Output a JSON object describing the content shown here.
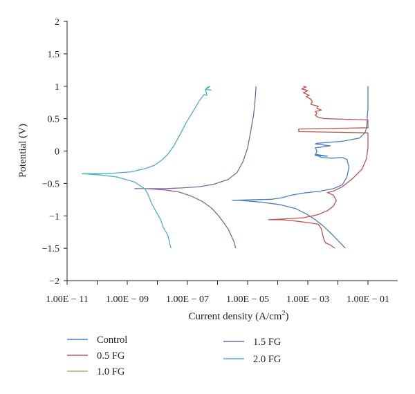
{
  "chart_data": {
    "type": "line",
    "title": "",
    "xlabel": "Current density (A/cm",
    "xlabel_sup": "2",
    "xlabel_end": ")",
    "ylabel": "Potential (V)",
    "x_scale": "log",
    "xlim": [
      1e-11,
      1
    ],
    "ylim": [
      -2,
      2
    ],
    "x_ticks": [
      1e-11,
      1e-09,
      1e-07,
      1e-05,
      0.001,
      0.1
    ],
    "x_tick_labels": [
      "1.00E − 11",
      "1.00E − 09",
      "1.00E − 07",
      "1.00E − 05",
      "1.00E − 03",
      "1.00E − 01"
    ],
    "y_ticks": [
      -2,
      -1.5,
      -1,
      -0.5,
      0,
      0.5,
      1,
      1.5,
      2
    ],
    "y_tick_labels": [
      "−2",
      "−1.5",
      "−1",
      "−0.5",
      "0",
      "0.5",
      "1",
      "1.5",
      "2"
    ],
    "grid": false,
    "legend_position": "bottom",
    "series": [
      {
        "name": "Control",
        "color": "#4a7ebb",
        "points": [
          [
            0.01778,
            -1.5
          ],
          [
            0.01,
            -1.38
          ],
          [
            0.00562,
            -1.26
          ],
          [
            0.00316,
            -1.15
          ],
          [
            0.00178,
            -1.06
          ],
          [
            0.000891,
            -0.97
          ],
          [
            0.000398,
            -0.89
          ],
          [
            0.000126,
            -0.83
          ],
          [
            3.16e-05,
            -0.79
          ],
          [
            5.62e-06,
            -0.76
          ],
          [
            3.16e-06,
            -0.76
          ],
          [
            6.31e-05,
            -0.745
          ],
          [
            0.000141,
            -0.72
          ],
          [
            0.000282,
            -0.68
          ],
          [
            0.000708,
            -0.65
          ],
          [
            0.00251,
            -0.62
          ],
          [
            0.00708,
            -0.58
          ],
          [
            0.0141,
            -0.52
          ],
          [
            0.02,
            -0.4
          ],
          [
            0.0234,
            -0.25
          ],
          [
            0.02,
            -0.13
          ],
          [
            0.0141,
            -0.1
          ],
          [
            0.00631,
            -0.11
          ],
          [
            0.00282,
            -0.1
          ],
          [
            0.002,
            -0.06
          ],
          [
            0.00224,
            -0.08
          ],
          [
            0.00178,
            -0.05
          ],
          [
            0.00447,
            -0.08
          ],
          [
            0.00178,
            -0.07
          ],
          [
            0.002,
            0.0
          ],
          [
            0.00178,
            0.05
          ],
          [
            0.00562,
            0.08
          ],
          [
            0.00178,
            0.11
          ],
          [
            0.002,
            0.12
          ],
          [
            0.0141,
            0.15
          ],
          [
            0.0525,
            0.2
          ],
          [
            0.0794,
            0.28
          ],
          [
            0.0891,
            0.35
          ],
          [
            0.0933,
            0.45
          ],
          [
            0.0955,
            0.55
          ],
          [
            0.1,
            0.65
          ],
          [
            0.1,
            0.8
          ],
          [
            0.1,
            1.0
          ]
        ]
      },
      {
        "name": "0.5 FG",
        "color": "#c0504d",
        "points": [
          [
            0.00794,
            -1.5
          ],
          [
            0.00562,
            -1.45
          ],
          [
            0.00398,
            -1.42
          ],
          [
            0.00355,
            -1.38
          ],
          [
            0.00316,
            -1.3
          ],
          [
            0.00282,
            -1.2
          ],
          [
            0.00224,
            -1.13
          ],
          [
            0.00126,
            -1.11
          ],
          [
            0.000398,
            -1.08
          ],
          [
            0.000141,
            -1.06
          ],
          [
            5.01e-05,
            -1.06
          ],
          [
            0.000141,
            -1.05
          ],
          [
            0.000708,
            -1.03
          ],
          [
            0.00224,
            -0.98
          ],
          [
            0.00447,
            -0.92
          ],
          [
            0.00708,
            -0.85
          ],
          [
            0.00891,
            -0.76
          ],
          [
            0.00708,
            -0.68
          ],
          [
            0.00447,
            -0.64
          ],
          [
            0.00708,
            -0.62
          ],
          [
            0.0141,
            -0.55
          ],
          [
            0.0316,
            -0.42
          ],
          [
            0.0631,
            -0.28
          ],
          [
            0.0891,
            -0.12
          ],
          [
            0.1,
            0.05
          ],
          [
            0.1,
            0.28
          ],
          [
            0.0005,
            0.3
          ],
          [
            0.0005,
            0.34
          ],
          [
            0.1,
            0.36
          ],
          [
            0.1,
            0.48
          ],
          [
            0.00355,
            0.5
          ],
          [
            0.00224,
            0.52
          ],
          [
            0.00178,
            0.55
          ],
          [
            0.002,
            0.58
          ],
          [
            0.00178,
            0.61
          ],
          [
            0.00282,
            0.63
          ],
          [
            0.002,
            0.66
          ],
          [
            0.00224,
            0.69
          ],
          [
            0.00126,
            0.72
          ],
          [
            0.00141,
            0.76
          ],
          [
            0.00126,
            0.8
          ],
          [
            0.000891,
            0.84
          ],
          [
            0.00112,
            0.86
          ],
          [
            0.000708,
            0.9
          ],
          [
            0.001,
            0.93
          ],
          [
            0.000631,
            0.96
          ],
          [
            0.000891,
            0.99
          ],
          [
            0.000708,
            1.0
          ]
        ]
      },
      {
        "name": "1.0 FG",
        "color": "#9bbb59",
        "points": []
      },
      {
        "name": "1.5 FG",
        "color": "#8064a2",
        "points": [
          [
            3.98e-06,
            -1.5
          ],
          [
            3.55e-06,
            -1.4
          ],
          [
            2.82e-06,
            -1.3
          ],
          [
            2.24e-06,
            -1.2
          ],
          [
            1.58e-06,
            -1.1
          ],
          [
            1e-06,
            -0.98
          ],
          [
            6.31e-07,
            -0.88
          ],
          [
            3.16e-07,
            -0.78
          ],
          [
            1.26e-07,
            -0.69
          ],
          [
            5.01e-08,
            -0.63
          ],
          [
            1.78e-08,
            -0.6
          ],
          [
            4.47e-09,
            -0.58
          ],
          [
            1.78e-09,
            -0.58
          ],
          [
            1.78e-08,
            -0.58
          ],
          [
            6.31e-08,
            -0.57
          ],
          [
            2.51e-07,
            -0.55
          ],
          [
            7.94e-07,
            -0.51
          ],
          [
            2.24e-06,
            -0.44
          ],
          [
            4.47e-06,
            -0.33
          ],
          [
            7.08e-06,
            -0.16
          ],
          [
            1e-05,
            0.05
          ],
          [
            1.26e-05,
            0.3
          ],
          [
            1.58e-05,
            0.55
          ],
          [
            1.78e-05,
            0.8
          ],
          [
            1.91e-05,
            1.0
          ]
        ]
      },
      {
        "name": "2.0 FG",
        "color": "#4bacc6",
        "points": [
          [
            2.82e-08,
            -1.5
          ],
          [
            2.51e-08,
            -1.4
          ],
          [
            2.24e-08,
            -1.3
          ],
          [
            1.58e-08,
            -1.18
          ],
          [
            1.26e-08,
            -1.05
          ],
          [
            8.91e-09,
            -0.93
          ],
          [
            6.31e-09,
            -0.8
          ],
          [
            5.01e-09,
            -0.68
          ],
          [
            3.98e-09,
            -0.59
          ],
          [
            1.78e-09,
            -0.48
          ],
          [
            4.47e-10,
            -0.4
          ],
          [
            1.26e-10,
            -0.37
          ],
          [
            3.16e-11,
            -0.35
          ],
          [
            1.26e-10,
            -0.35
          ],
          [
            3.98e-10,
            -0.34
          ],
          [
            1.41e-09,
            -0.32
          ],
          [
            3.98e-09,
            -0.27
          ],
          [
            7.94e-09,
            -0.22
          ],
          [
            1.41e-08,
            -0.14
          ],
          [
            2.24e-08,
            -0.05
          ],
          [
            3.55e-08,
            0.08
          ],
          [
            5.62e-08,
            0.25
          ],
          [
            8.91e-08,
            0.43
          ],
          [
            1.58e-07,
            0.62
          ],
          [
            2.51e-07,
            0.78
          ],
          [
            3.55e-07,
            0.87
          ],
          [
            4.47e-07,
            0.86
          ],
          [
            3.98e-07,
            0.95
          ],
          [
            4.47e-07,
            0.98
          ],
          [
            5.62e-07,
            1.0
          ],
          [
            3.98e-07,
            0.95
          ],
          [
            6.31e-07,
            0.94
          ]
        ]
      }
    ]
  }
}
